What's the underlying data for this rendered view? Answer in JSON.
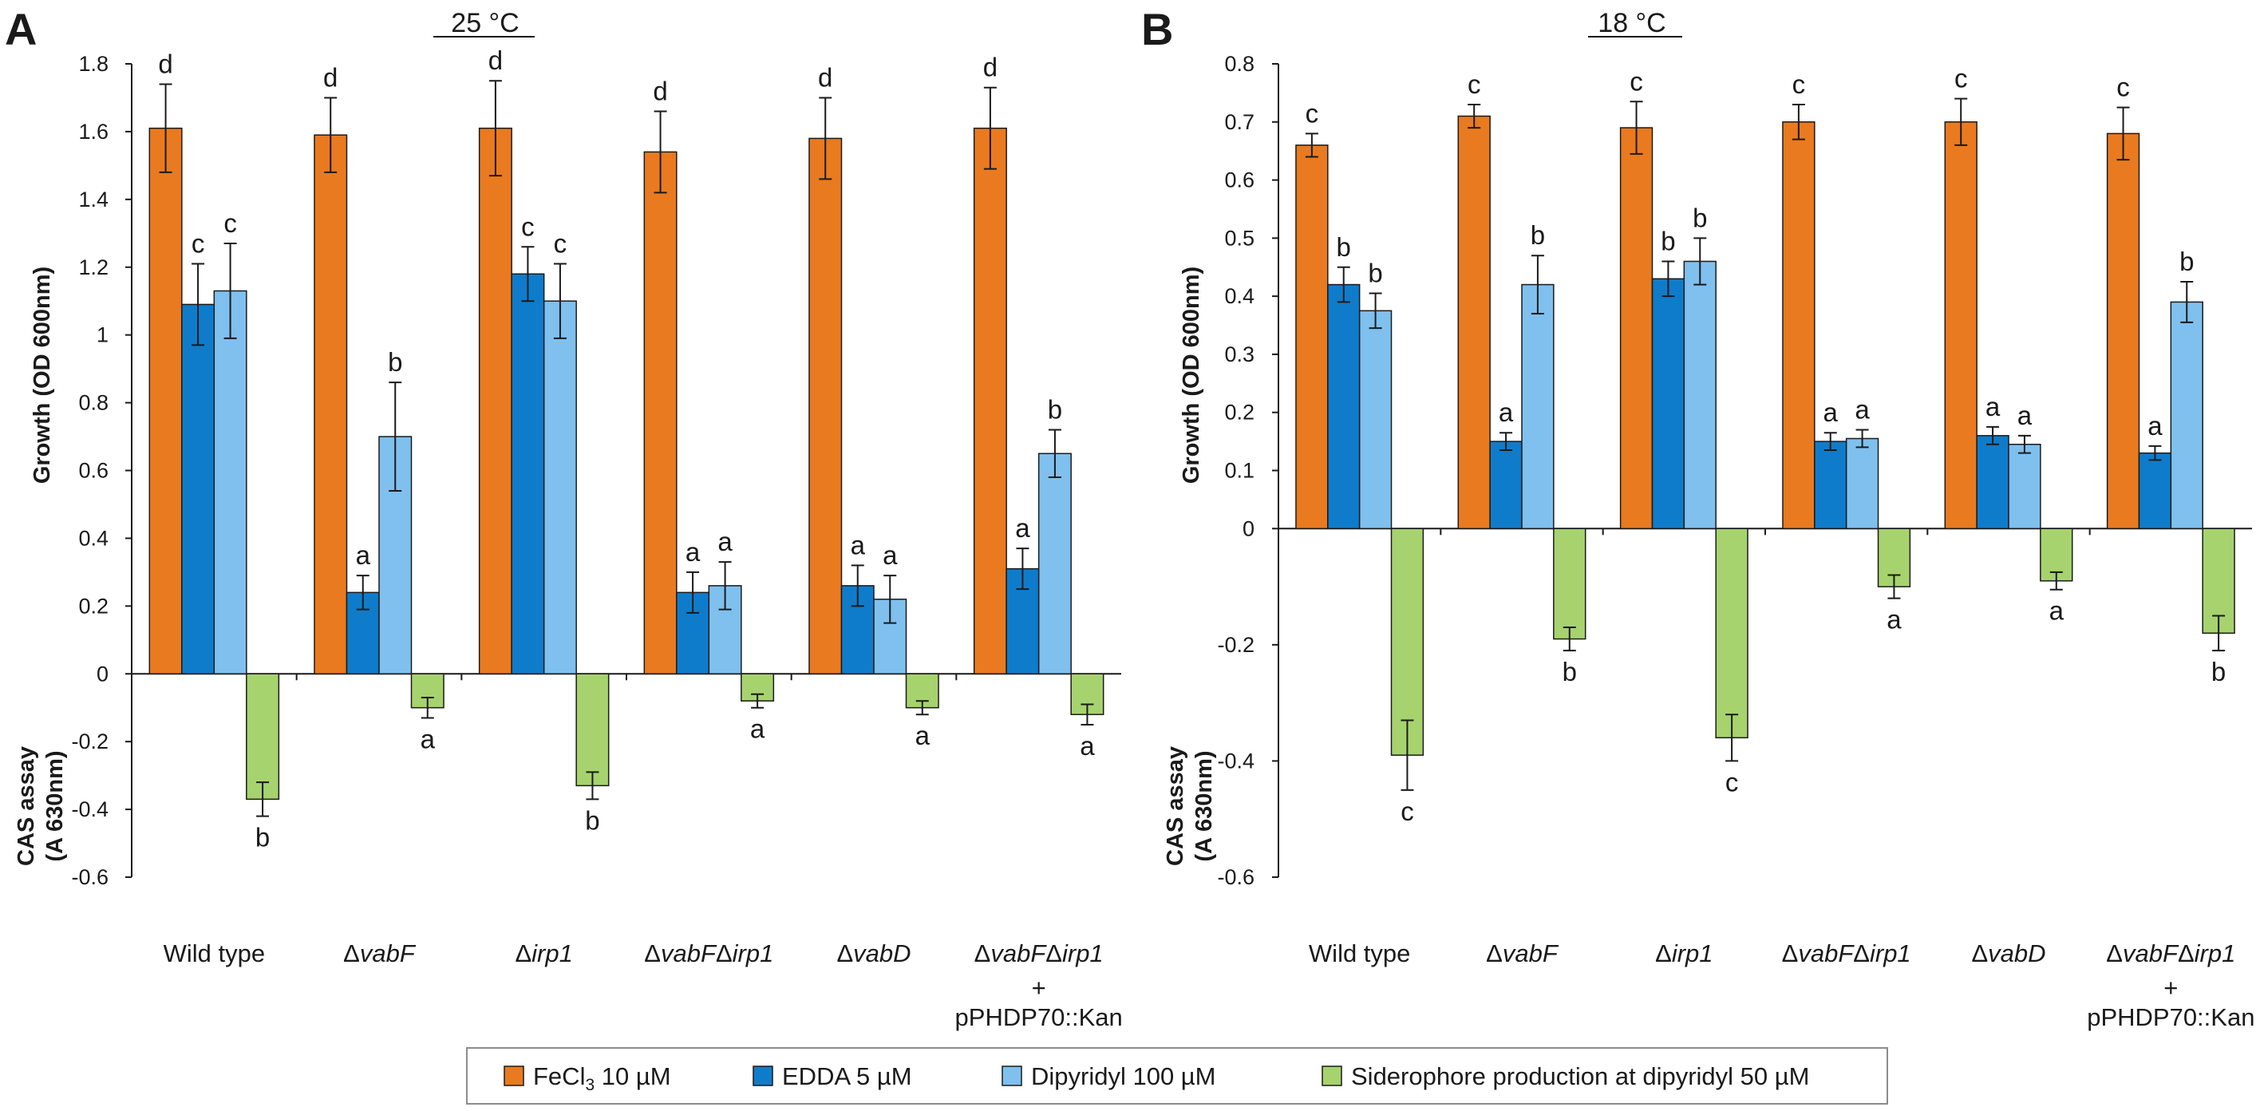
{
  "legend": [
    {
      "label": "FeCl",
      "sub": "3",
      "tail": " 10 µM",
      "color": "#E97A1F"
    },
    {
      "label": "EDDA 5 µM",
      "color": "#0F7CCB"
    },
    {
      "label": "Dipyridyl 100 µM",
      "color": "#7FC0EE"
    },
    {
      "label": "Siderophore production at dipyridyl 50 µM",
      "color": "#A6D36E"
    }
  ],
  "chart_data": [
    {
      "panel": "A",
      "type": "bar",
      "temperature": "25 °C",
      "ylabel_top": "Growth (OD 600nm)",
      "ylabel_bottom": [
        "CAS assay",
        "(A 630nm)"
      ],
      "ylim": [
        -0.6,
        1.8
      ],
      "yticks": [
        1.8,
        1.6,
        1.4,
        1.2,
        1,
        0.8,
        0.6,
        0.4,
        0.2,
        0,
        -0.2,
        -0.4,
        -0.6
      ],
      "ytick_labels": [
        "1.8",
        "1.6",
        "1.4",
        "1.2",
        "1",
        "0.8",
        "0.6",
        "0.4",
        "0.2",
        "0",
        "-0.2",
        "-0.4",
        "-0.6"
      ],
      "categories": [
        {
          "parts": [
            {
              "t": "Wild type",
              "i": false
            }
          ]
        },
        {
          "parts": [
            {
              "t": "Δ",
              "i": false
            },
            {
              "t": "vabF",
              "i": true
            }
          ]
        },
        {
          "parts": [
            {
              "t": "Δ",
              "i": false
            },
            {
              "t": "irp1",
              "i": true
            }
          ]
        },
        {
          "parts": [
            {
              "t": "Δ",
              "i": false
            },
            {
              "t": "vabF",
              "i": true
            },
            {
              "t": "Δ",
              "i": false
            },
            {
              "t": "irp1",
              "i": true
            }
          ]
        },
        {
          "parts": [
            {
              "t": "Δ",
              "i": false
            },
            {
              "t": "vabD",
              "i": true
            }
          ]
        },
        {
          "parts": [
            {
              "t": "Δ",
              "i": false
            },
            {
              "t": "vabF",
              "i": true
            },
            {
              "t": "Δ",
              "i": false
            },
            {
              "t": "irp1",
              "i": true
            }
          ],
          "extra": [
            "+",
            "pPHDP70::Kan"
          ]
        }
      ],
      "series": [
        {
          "name": "FeCl3 10 µM",
          "values": [
            1.61,
            1.59,
            1.61,
            1.54,
            1.58,
            1.61
          ],
          "errors": [
            0.13,
            0.11,
            0.14,
            0.12,
            0.12,
            0.12
          ],
          "labels": [
            "d",
            "d",
            "d",
            "d",
            "d",
            "d"
          ]
        },
        {
          "name": "EDDA 5 µM",
          "values": [
            1.09,
            0.24,
            1.18,
            0.24,
            0.26,
            0.31
          ],
          "errors": [
            0.12,
            0.05,
            0.08,
            0.06,
            0.06,
            0.06
          ],
          "labels": [
            "c",
            "a",
            "c",
            "a",
            "a",
            "a"
          ]
        },
        {
          "name": "Dipyridyl 100 µM",
          "values": [
            1.13,
            0.7,
            1.1,
            0.26,
            0.22,
            0.65
          ],
          "errors": [
            0.14,
            0.16,
            0.11,
            0.07,
            0.07,
            0.07
          ],
          "labels": [
            "c",
            "b",
            "c",
            "a",
            "a",
            "b"
          ]
        },
        {
          "name": "Siderophore production at dipyridyl 50 µM",
          "values": [
            -0.37,
            -0.1,
            -0.33,
            -0.08,
            -0.1,
            -0.12
          ],
          "errors": [
            0.05,
            0.03,
            0.04,
            0.02,
            0.02,
            0.03
          ],
          "labels": [
            "b",
            "a",
            "b",
            "a",
            "a",
            "a"
          ]
        }
      ]
    },
    {
      "panel": "B",
      "type": "bar",
      "temperature": "18 °C",
      "ylabel_top": "Growth (OD 600nm)",
      "ylabel_bottom": [
        "CAS assay",
        "(A 630nm)"
      ],
      "ylim": [
        -0.6,
        0.8
      ],
      "yticks": [
        0.8,
        0.7,
        0.6,
        0.5,
        0.4,
        0.3,
        0.2,
        0.1,
        0,
        -0.2,
        -0.4,
        -0.6
      ],
      "ytick_labels": [
        "0.8",
        "0.7",
        "0.6",
        "0.5",
        "0.4",
        "0.3",
        "0.2",
        "0.1",
        "0",
        "-0.2",
        "-0.4",
        "-0.6"
      ],
      "categories": [
        {
          "parts": [
            {
              "t": "Wild type",
              "i": false
            }
          ]
        },
        {
          "parts": [
            {
              "t": "Δ",
              "i": false
            },
            {
              "t": "vabF",
              "i": true
            }
          ]
        },
        {
          "parts": [
            {
              "t": "Δ",
              "i": false
            },
            {
              "t": "irp1",
              "i": true
            }
          ]
        },
        {
          "parts": [
            {
              "t": "Δ",
              "i": false
            },
            {
              "t": "vabF",
              "i": true
            },
            {
              "t": "Δ",
              "i": false
            },
            {
              "t": "irp1",
              "i": true
            }
          ]
        },
        {
          "parts": [
            {
              "t": "Δ",
              "i": false
            },
            {
              "t": "vabD",
              "i": true
            }
          ]
        },
        {
          "parts": [
            {
              "t": "Δ",
              "i": false
            },
            {
              "t": "vabF",
              "i": true
            },
            {
              "t": "Δ",
              "i": false
            },
            {
              "t": "irp1",
              "i": true
            }
          ],
          "extra": [
            "+",
            "pPHDP70::Kan"
          ]
        }
      ],
      "series": [
        {
          "name": "FeCl3 10 µM",
          "values": [
            0.66,
            0.71,
            0.69,
            0.7,
            0.7,
            0.68
          ],
          "errors": [
            0.02,
            0.02,
            0.045,
            0.03,
            0.04,
            0.045
          ],
          "labels": [
            "c",
            "c",
            "c",
            "c",
            "c",
            "c"
          ]
        },
        {
          "name": "EDDA 5 µM",
          "values": [
            0.42,
            0.15,
            0.43,
            0.15,
            0.16,
            0.13
          ],
          "errors": [
            0.03,
            0.015,
            0.03,
            0.015,
            0.015,
            0.012
          ],
          "labels": [
            "b",
            "a",
            "b",
            "a",
            "a",
            "a"
          ]
        },
        {
          "name": "Dipyridyl 100 µM",
          "values": [
            0.375,
            0.42,
            0.46,
            0.155,
            0.145,
            0.39
          ],
          "errors": [
            0.03,
            0.05,
            0.04,
            0.015,
            0.015,
            0.035
          ],
          "labels": [
            "b",
            "b",
            "b",
            "a",
            "a",
            "b"
          ]
        },
        {
          "name": "Siderophore production at dipyridyl 50 µM",
          "values": [
            -0.39,
            -0.19,
            -0.36,
            -0.1,
            -0.09,
            -0.18
          ],
          "errors": [
            0.06,
            0.02,
            0.04,
            0.02,
            0.015,
            0.03
          ],
          "labels": [
            "c",
            "b",
            "c",
            "a",
            "a",
            "b"
          ]
        }
      ]
    }
  ]
}
